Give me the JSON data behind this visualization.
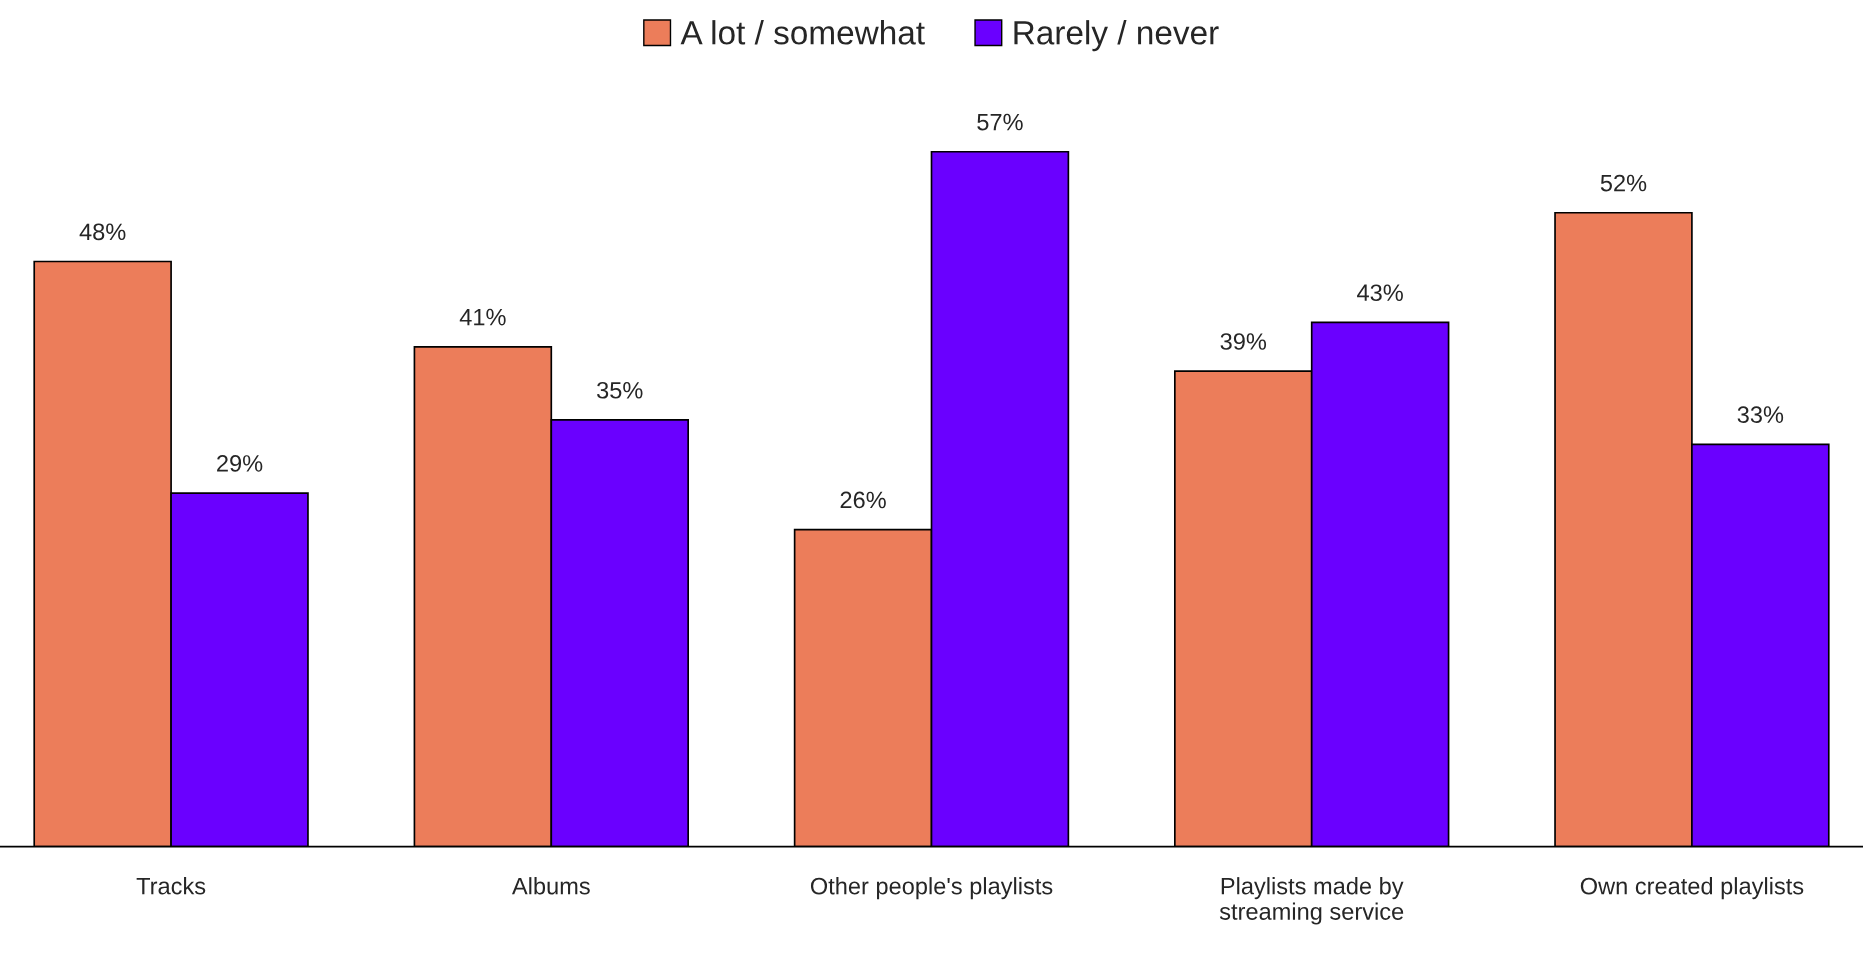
{
  "chart_data": {
    "type": "bar",
    "categories": [
      "Tracks",
      "Albums",
      "Other people's playlists",
      "Playlists made by\nstreaming service",
      "Own created playlists"
    ],
    "series": [
      {
        "name": "A lot / somewhat",
        "color": "#ec7d5a",
        "values": [
          48,
          41,
          26,
          39,
          52
        ],
        "value_labels": [
          "48%",
          "41%",
          "26%",
          "39%",
          "52%"
        ]
      },
      {
        "name": "Rarely / never",
        "color": "#6a00ff",
        "values": [
          29,
          35,
          57,
          43,
          33
        ],
        "value_labels": [
          "29%",
          "35%",
          "57%",
          "43%",
          "33%"
        ]
      }
    ],
    "legend": "top",
    "grid": false
  }
}
